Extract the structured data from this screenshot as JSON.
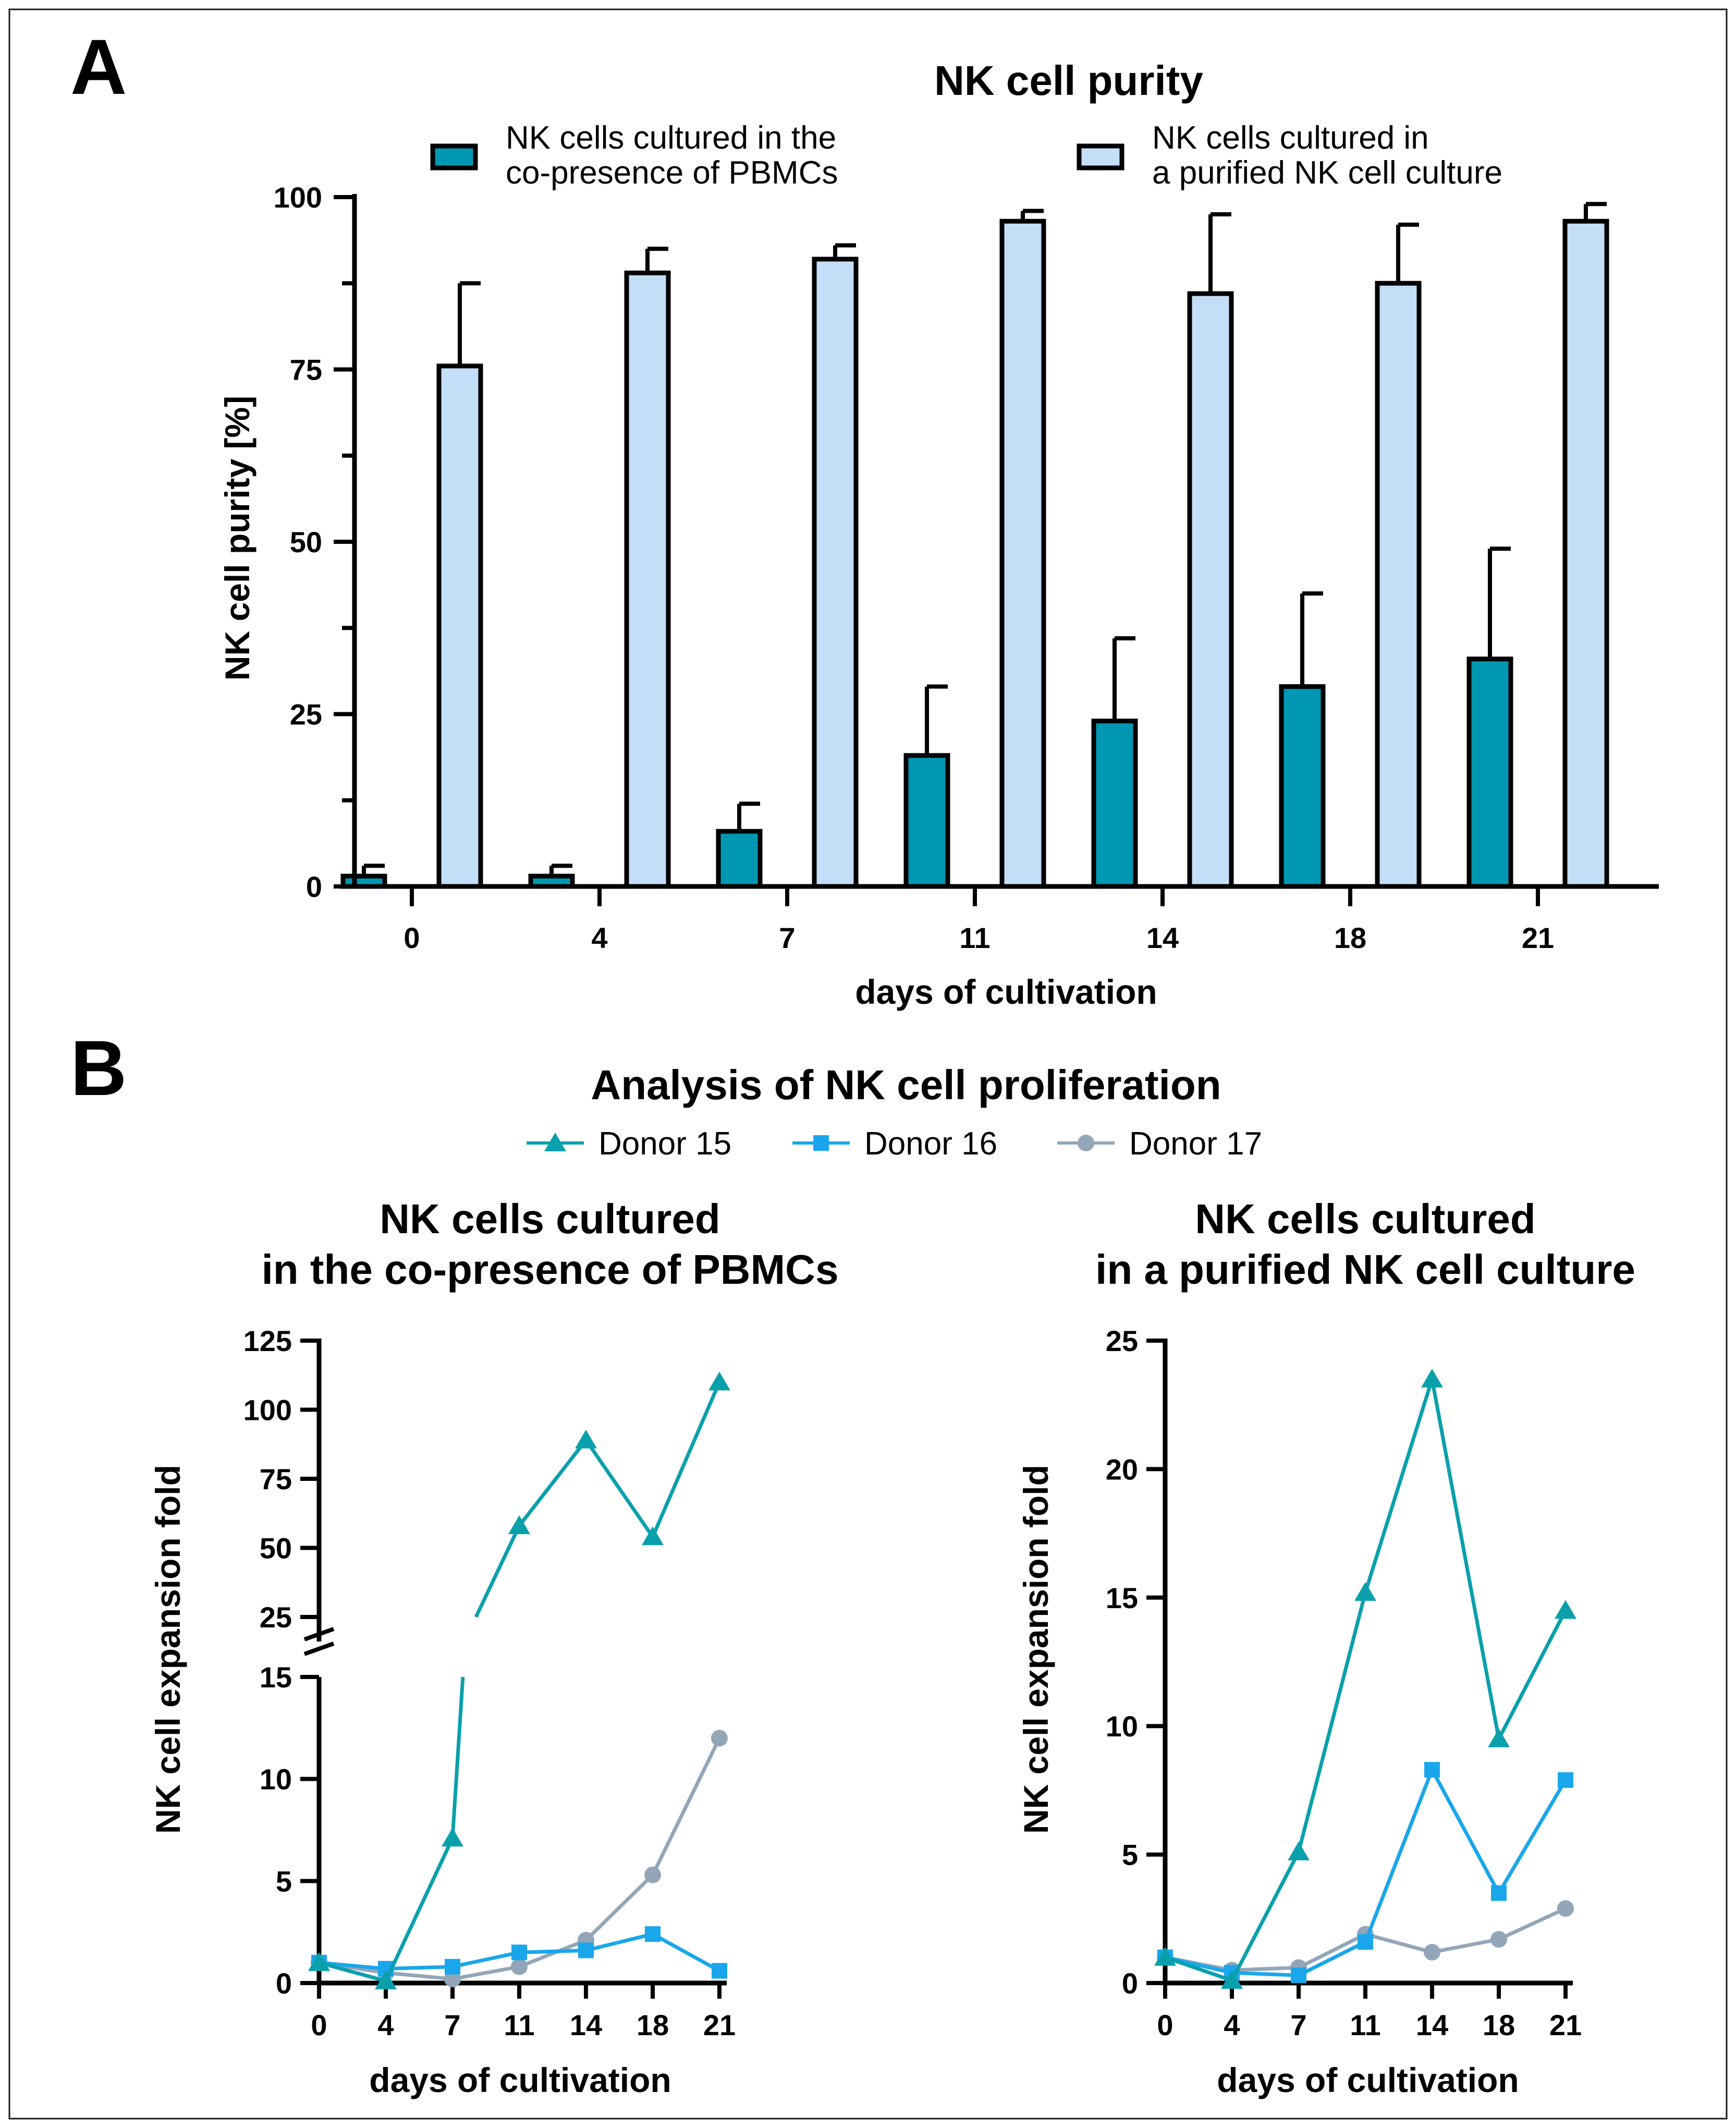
{
  "colors": {
    "teal": "#0097b2",
    "light_blue": "#c5def8",
    "donor15": "#0aa0ab",
    "donor16": "#1aa6ea",
    "donor17": "#93a6b8"
  },
  "panel_labels": [
    "A",
    "B"
  ],
  "panel_b_title": "Analysis of NK cell proliferation",
  "panel_b_legend": [
    {
      "name": "Donor 15",
      "marker": "triangle"
    },
    {
      "name": "Donor 16",
      "marker": "square"
    },
    {
      "name": "Donor 17",
      "marker": "circle"
    }
  ],
  "chart_data": [
    {
      "type": "bar",
      "title": "NK cell purity",
      "xlabel": "days of cultivation",
      "ylabel": "NK cell purity [%]",
      "ylim": [
        0,
        100
      ],
      "yticks": [
        0,
        25,
        50,
        75,
        100
      ],
      "categories": [
        "0",
        "4",
        "7",
        "11",
        "14",
        "18",
        "21"
      ],
      "legend_position": "top",
      "series": [
        {
          "name": "NK cells cultured in the co-presence of PBMCs",
          "legend_lines": [
            "NK cells cultured in the",
            "co-presence of PBMCs"
          ],
          "values": [
            1.5,
            1.5,
            8,
            19,
            24,
            29,
            33
          ],
          "errors": [
            1.5,
            1.5,
            4,
            10,
            12,
            13.5,
            16
          ]
        },
        {
          "name": "NK cells cultured in a purified NK cell culture",
          "legend_lines": [
            "NK cells cultured in",
            "a purified NK cell culture"
          ],
          "values": [
            75.5,
            89,
            91,
            96.5,
            86,
            87.5,
            96.5
          ],
          "errors": [
            12,
            3.5,
            2,
            1.5,
            11.5,
            8.5,
            2.5
          ]
        }
      ]
    },
    {
      "type": "line",
      "title_lines": [
        "NK cells cultured",
        "in the co-presence of PBMCs"
      ],
      "xlabel": "days of cultivation",
      "ylabel": "NK cell expansion fold",
      "categories": [
        "0",
        "4",
        "7",
        "11",
        "14",
        "18",
        "21"
      ],
      "y_axis_break": {
        "lower_range": [
          0,
          15
        ],
        "upper_range": [
          20,
          125
        ]
      },
      "yticks_lower": [
        0,
        5,
        10,
        15
      ],
      "yticks_upper": [
        25,
        50,
        75,
        100,
        125
      ],
      "series": [
        {
          "name": "Donor 15",
          "values": [
            1.0,
            0.1,
            7.1,
            58,
            89,
            54,
            110
          ]
        },
        {
          "name": "Donor 16",
          "values": [
            1.0,
            0.7,
            0.8,
            1.5,
            1.6,
            2.4,
            0.6
          ]
        },
        {
          "name": "Donor 17",
          "values": [
            1.0,
            0.5,
            0.2,
            0.8,
            2.1,
            5.3,
            12.0
          ]
        }
      ]
    },
    {
      "type": "line",
      "title_lines": [
        "NK cells cultured",
        "in a purified NK cell culture"
      ],
      "xlabel": "days of cultivation",
      "ylabel": "NK cell expansion fold",
      "categories": [
        "0",
        "4",
        "7",
        "11",
        "14",
        "18",
        "21"
      ],
      "ylim": [
        0,
        25
      ],
      "yticks": [
        0,
        5,
        10,
        15,
        20,
        25
      ],
      "series": [
        {
          "name": "Donor 15",
          "values": [
            1.0,
            0.1,
            5.1,
            15.2,
            23.5,
            9.5,
            14.5
          ]
        },
        {
          "name": "Donor 16",
          "values": [
            1.0,
            0.4,
            0.3,
            1.6,
            8.3,
            3.5,
            7.9
          ]
        },
        {
          "name": "Donor 17",
          "values": [
            1.0,
            0.5,
            0.6,
            1.9,
            1.2,
            1.7,
            2.9
          ]
        }
      ]
    }
  ]
}
